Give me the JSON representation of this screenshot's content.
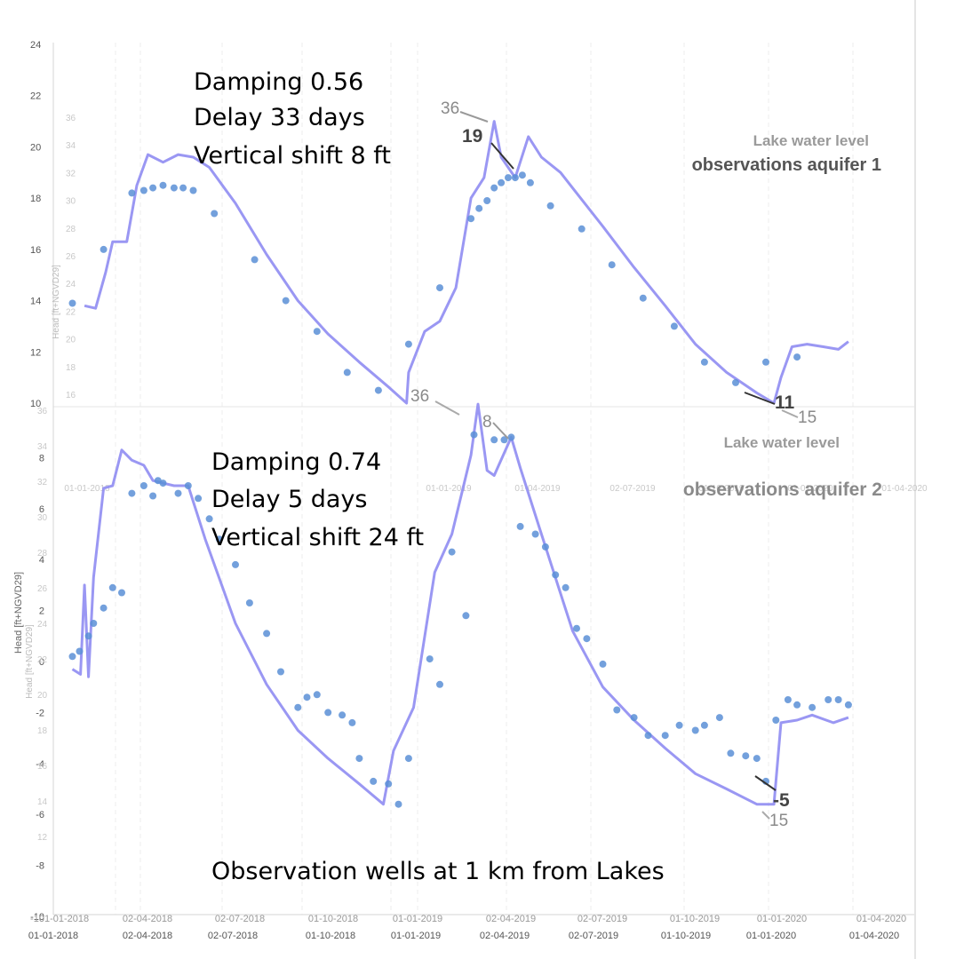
{
  "chart_data": [
    {
      "type": "line",
      "panel": "top",
      "annotation_lines": [
        "Damping 0.56",
        "Delay 33 days",
        "Vertical shift  8 ft"
      ],
      "legend": [
        "Lake water level",
        "observations aquifer 1"
      ],
      "y_ticks": [
        "24",
        "22",
        "20",
        "18",
        "16",
        "14",
        "12",
        "10"
      ],
      "y_ticks_faint": [
        "36",
        "34",
        "32",
        "30",
        "28",
        "26",
        "24",
        "22",
        "20",
        "18",
        "16"
      ],
      "ylabel_faint": "Head [ft+NGVD29]",
      "ylim": [
        10,
        24
      ],
      "series": [
        {
          "role": "lake-model",
          "x": [
            "2018-02-01",
            "2018-02-12",
            "2018-02-22",
            "2018-03-01",
            "2018-03-15",
            "2018-03-25",
            "2018-04-05",
            "2018-04-20",
            "2018-05-05",
            "2018-05-20",
            "2018-06-05",
            "2018-07-01",
            "2018-08-01",
            "2018-09-01",
            "2018-10-01",
            "2018-11-01",
            "2018-12-01",
            "2018-12-18",
            "2018-12-20",
            "2019-01-05",
            "2019-01-20",
            "2019-02-05",
            "2019-02-20",
            "2019-03-05",
            "2019-03-15",
            "2019-03-22",
            "2019-04-05",
            "2019-04-18",
            "2019-05-01",
            "2019-05-20",
            "2019-06-05",
            "2019-07-01",
            "2019-08-01",
            "2019-09-01",
            "2019-10-01",
            "2019-11-01",
            "2019-12-01",
            "2019-12-18",
            "2019-12-25",
            "2020-01-05",
            "2020-01-20",
            "2020-02-05",
            "2020-02-20",
            "2020-03-01"
          ],
          "y": [
            13.8,
            13.7,
            15.1,
            16.3,
            16.3,
            18.5,
            19.7,
            19.4,
            19.7,
            19.6,
            19.2,
            17.8,
            15.8,
            14.0,
            12.7,
            11.6,
            10.6,
            10.0,
            11.2,
            12.8,
            13.2,
            14.5,
            18.0,
            18.8,
            21.0,
            19.6,
            18.8,
            20.4,
            19.6,
            19.0,
            18.2,
            16.9,
            15.3,
            13.8,
            12.3,
            11.2,
            10.4,
            10.0,
            11.0,
            12.2,
            12.3,
            12.2,
            12.1,
            12.4
          ]
        },
        {
          "role": "observations",
          "x": [
            "2018-01-20",
            "2018-02-20",
            "2018-03-20",
            "2018-04-01",
            "2018-04-10",
            "2018-04-20",
            "2018-05-01",
            "2018-05-10",
            "2018-05-20",
            "2018-06-10",
            "2018-07-20",
            "2018-08-20",
            "2018-09-20",
            "2018-10-20",
            "2018-11-20",
            "2018-12-20",
            "2019-01-20",
            "2019-02-20",
            "2019-02-28",
            "2019-03-08",
            "2019-03-15",
            "2019-03-22",
            "2019-03-29",
            "2019-04-05",
            "2019-04-12",
            "2019-04-20",
            "2019-05-10",
            "2019-06-10",
            "2019-07-10",
            "2019-08-10",
            "2019-09-10",
            "2019-10-10",
            "2019-11-10",
            "2019-12-10",
            "2020-01-10"
          ],
          "y": [
            13.9,
            16.0,
            18.2,
            18.3,
            18.4,
            18.5,
            18.4,
            18.4,
            18.3,
            17.4,
            15.6,
            14.0,
            12.8,
            11.2,
            10.5,
            12.3,
            14.5,
            17.2,
            17.6,
            17.9,
            18.4,
            18.6,
            18.8,
            18.8,
            18.9,
            18.6,
            17.7,
            16.8,
            15.4,
            14.1,
            13.0,
            11.6,
            10.8,
            11.6,
            11.8
          ]
        }
      ],
      "labels": [
        "36",
        "19",
        "11",
        "15"
      ]
    },
    {
      "type": "line",
      "panel": "bottom",
      "annotation_lines": [
        "Damping 0.74",
        "Delay 5 days",
        "Vertical shift 24 ft"
      ],
      "legend": [
        "Lake water level",
        "observations aquifer 2"
      ],
      "y_ticks": [
        "8",
        "6",
        "4",
        "2",
        "0",
        "-2",
        "-4",
        "-6",
        "-8",
        "-10"
      ],
      "y_ticks_faint": [
        "36",
        "34",
        "32",
        "30",
        "28",
        "26",
        "24",
        "22",
        "20",
        "18",
        "16",
        "14",
        "12"
      ],
      "ylabel": "Head [ft+NGVD29]",
      "ylabel_faint": "Head [ft+NGVD29]",
      "ylim": [
        -10,
        10
      ],
      "series": [
        {
          "role": "lake-model",
          "x": [
            "2018-01-20",
            "2018-01-28",
            "2018-02-01",
            "2018-02-05",
            "2018-02-10",
            "2018-02-20",
            "2018-03-01",
            "2018-03-10",
            "2018-03-20",
            "2018-04-01",
            "2018-04-10",
            "2018-04-20",
            "2018-05-01",
            "2018-05-15",
            "2018-06-01",
            "2018-07-01",
            "2018-08-01",
            "2018-09-01",
            "2018-10-01",
            "2018-11-01",
            "2018-11-25",
            "2018-12-05",
            "2018-12-25",
            "2019-01-15",
            "2019-02-01",
            "2019-02-20",
            "2019-02-27",
            "2019-03-08",
            "2019-03-15",
            "2019-04-01",
            "2019-04-10",
            "2019-05-01",
            "2019-06-01",
            "2019-07-01",
            "2019-08-01",
            "2019-09-01",
            "2019-10-01",
            "2019-11-01",
            "2019-12-01",
            "2019-12-18",
            "2019-12-25",
            "2020-01-10",
            "2020-01-25",
            "2020-02-15",
            "2020-03-01"
          ],
          "y": [
            -0.3,
            -0.5,
            3.0,
            -0.6,
            3.3,
            6.8,
            6.9,
            8.3,
            7.9,
            7.7,
            7.1,
            7.0,
            6.9,
            6.9,
            4.8,
            1.5,
            -0.9,
            -2.7,
            -3.8,
            -4.8,
            -5.6,
            -3.5,
            -1.8,
            3.5,
            5.0,
            8.1,
            10.1,
            7.5,
            7.3,
            8.8,
            7.6,
            5.0,
            1.2,
            -1.0,
            -2.3,
            -3.4,
            -4.4,
            -5.0,
            -5.6,
            -5.6,
            -2.4,
            -2.3,
            -2.1,
            -2.4,
            -2.2
          ]
        },
        {
          "role": "observations",
          "x": [
            "2018-01-20",
            "2018-01-27",
            "2018-02-05",
            "2018-02-10",
            "2018-02-20",
            "2018-03-01",
            "2018-03-10",
            "2018-03-20",
            "2018-04-01",
            "2018-04-10",
            "2018-04-15",
            "2018-04-20",
            "2018-05-05",
            "2018-05-15",
            "2018-05-25",
            "2018-06-05",
            "2018-06-15",
            "2018-07-01",
            "2018-07-15",
            "2018-08-01",
            "2018-08-15",
            "2018-09-01",
            "2018-09-10",
            "2018-09-20",
            "2018-10-01",
            "2018-10-15",
            "2018-10-25",
            "2018-11-01",
            "2018-11-15",
            "2018-11-30",
            "2018-12-10",
            "2018-12-20",
            "2019-01-10",
            "2019-01-20",
            "2019-02-01",
            "2019-02-15",
            "2019-02-23",
            "2019-03-15",
            "2019-03-25",
            "2019-04-01",
            "2019-04-10",
            "2019-04-25",
            "2019-05-05",
            "2019-05-15",
            "2019-05-25",
            "2019-06-05",
            "2019-06-15",
            "2019-07-01",
            "2019-07-15",
            "2019-08-01",
            "2019-08-15",
            "2019-09-01",
            "2019-09-15",
            "2019-10-01",
            "2019-10-10",
            "2019-10-25",
            "2019-11-05",
            "2019-11-20",
            "2019-12-01",
            "2019-12-10",
            "2019-12-20",
            "2020-01-01",
            "2020-01-10",
            "2020-01-25",
            "2020-02-10",
            "2020-02-20",
            "2020-03-01"
          ],
          "y": [
            0.2,
            0.4,
            1.0,
            1.5,
            2.1,
            2.9,
            2.7,
            6.6,
            6.9,
            6.5,
            7.1,
            7.0,
            6.6,
            6.9,
            6.4,
            5.6,
            4.8,
            3.8,
            2.3,
            1.1,
            -0.4,
            -1.8,
            -1.4,
            -1.3,
            -2.0,
            -2.1,
            -2.4,
            -3.8,
            -4.7,
            -4.8,
            -5.6,
            -3.8,
            0.1,
            -0.9,
            4.3,
            1.8,
            8.9,
            8.7,
            8.7,
            8.8,
            5.3,
            5.0,
            4.5,
            3.4,
            2.9,
            1.3,
            0.9,
            -0.1,
            -1.9,
            -2.2,
            -2.9,
            -2.9,
            -2.5,
            -2.7,
            -2.5,
            -2.2,
            -3.6,
            -3.7,
            -3.8,
            -4.7,
            -2.3,
            -1.5,
            -1.7,
            -1.8,
            -1.5,
            -1.5,
            -1.7
          ]
        }
      ],
      "labels": [
        "36",
        "8",
        "-5",
        "15"
      ]
    }
  ],
  "bottom_note": "Observation wells at 1 km from Lakes",
  "x_ticks": [
    "01-01-2018",
    "02-04-2018",
    "02-07-2018",
    "01-10-2018",
    "01-01-2019",
    "02-04-2019",
    "02-07-2019",
    "01-10-2019",
    "01-01-2020",
    "01-04-2020"
  ],
  "x_ticks_mid": [
    "-10",
    "01-01-2018",
    "02-04-2018",
    "02-07-2018",
    "01-10-2018",
    "01-01-2019",
    "02-04-2019",
    "02-07-2019",
    "01-10-2019",
    "01-01-2020",
    "01-04-2020"
  ],
  "x_ticks_faint": [
    "01-01-2018",
    "01-01-2019",
    "01-04-2019",
    "02-07-2019",
    "01-10-2019",
    "01-01-2020",
    "01-04-2020"
  ],
  "colors": {
    "line": "#8f8cf2",
    "dots": "#5b8fd6",
    "dots_dark": "#1f3f8f"
  }
}
